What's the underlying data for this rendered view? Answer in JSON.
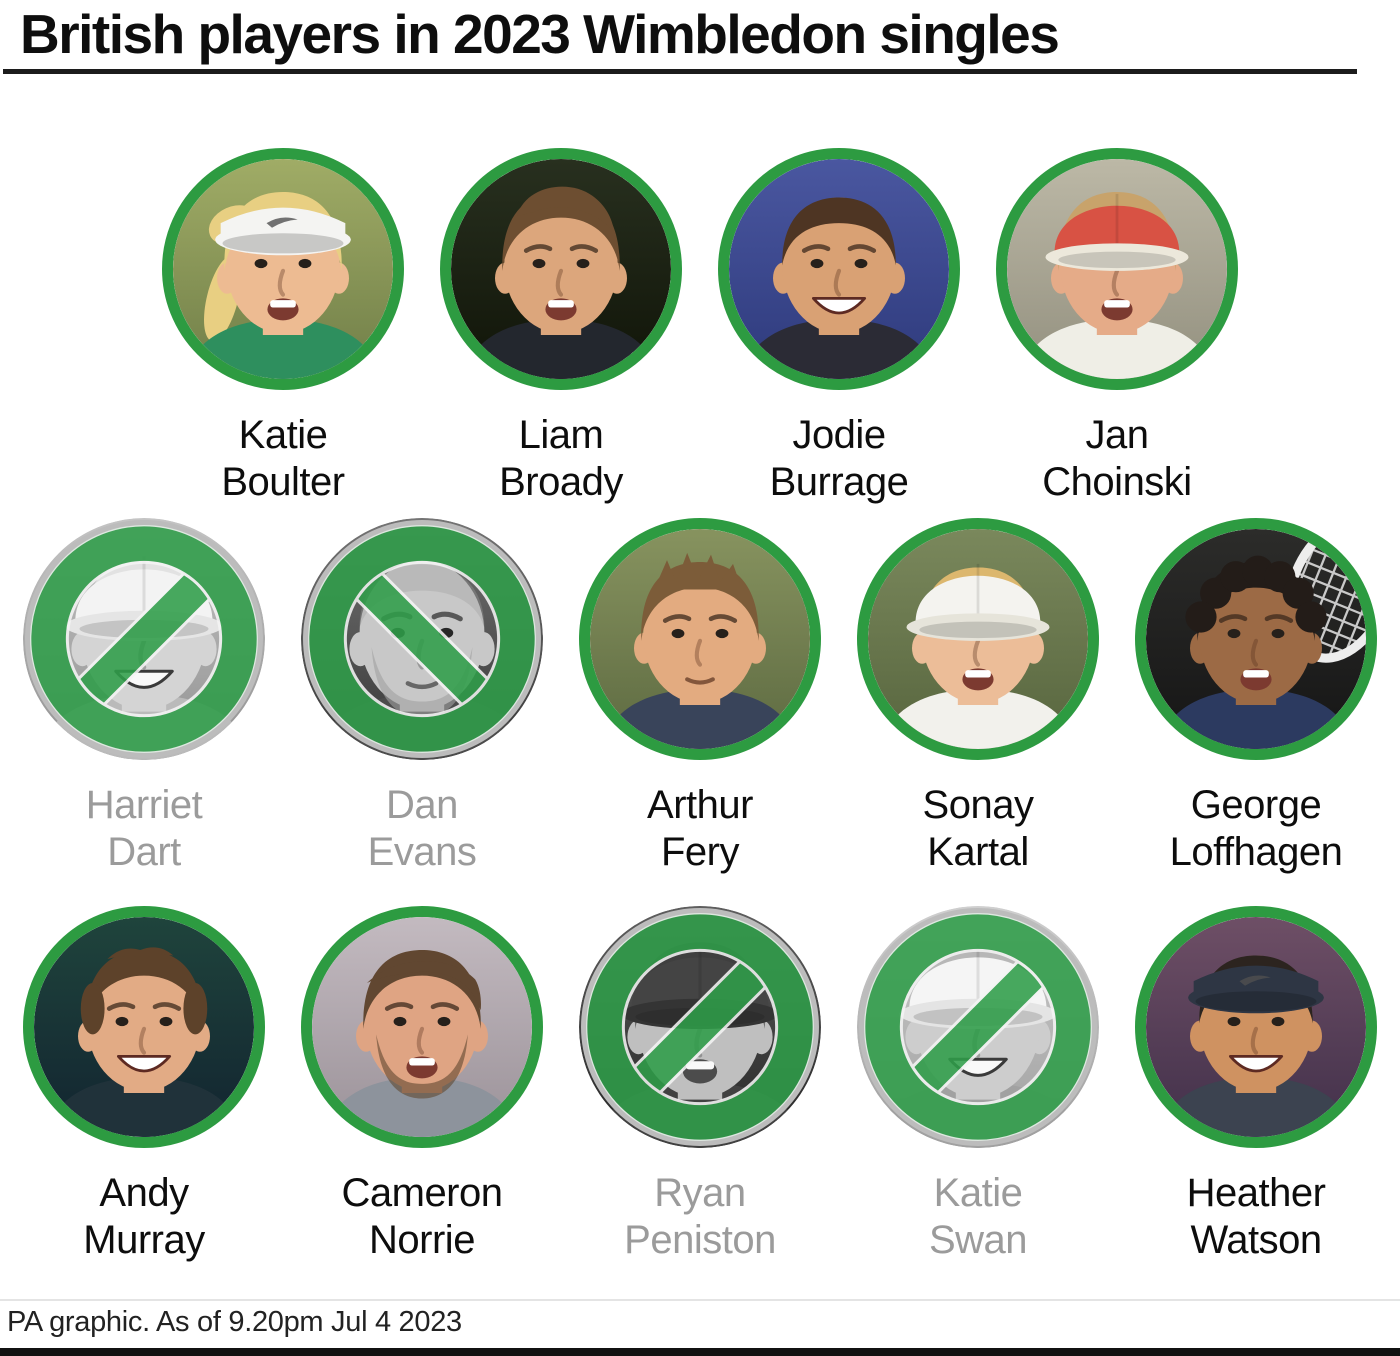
{
  "header": {
    "title": "British players in 2023 Wimbledon singles"
  },
  "footer": {
    "note": "PA graphic. As of 9.20pm Jul 4 2023"
  },
  "colors": {
    "active_ring_green": "#2d9b41",
    "ban_green": "#2f9e49",
    "ban_silver_ring": "#bcbcbc",
    "name_active": "#0d0d0d",
    "name_eliminated": "#9b9b9b",
    "title_rule": "#1c1c1c"
  },
  "rows": [
    {
      "players": [
        {
          "first": "Katie",
          "last": "Boulter",
          "status": "in",
          "photo": {
            "bg_top": "#a0ac66",
            "bg_bottom": "#707e48",
            "skin": "#edbb92",
            "hair": "#e8cf82",
            "hair_style": "ponytail",
            "headwear": "visor",
            "headwear_color": "#f4f4f2",
            "shirt": "#2e8f5e",
            "mouth": "open"
          }
        },
        {
          "first": "Liam",
          "last": "Broady",
          "status": "in",
          "photo": {
            "bg_top": "#28301f",
            "bg_bottom": "#101408",
            "skin": "#dca67c",
            "hair": "#6d4e31",
            "hair_style": "quiff",
            "headwear": "none",
            "shirt": "#23272e",
            "mouth": "open"
          }
        },
        {
          "first": "Jodie",
          "last": "Burrage",
          "status": "in",
          "photo": {
            "bg_top": "#4a57a0",
            "bg_bottom": "#2e3a7c",
            "skin": "#d9a174",
            "hair": "#4e3523",
            "hair_style": "pulledback",
            "headwear": "none",
            "shirt": "#2b2b35",
            "mouth": "grin"
          }
        },
        {
          "first": "Jan",
          "last": "Choinski",
          "status": "in",
          "photo": {
            "bg_top": "#bcb8a6",
            "bg_bottom": "#93907f",
            "skin": "#e5ab88",
            "hair": "#c8a36b",
            "hair_style": "short",
            "headwear": "cap",
            "headwear_color": "#d85244",
            "brim_color": "#ece8db",
            "shirt": "#efeee6",
            "mouth": "open"
          }
        }
      ]
    },
    {
      "players": [
        {
          "first": "Harriet",
          "last": "Dart",
          "status": "out",
          "slash": "/",
          "photo": {
            "bg_top": "#c2c2c2",
            "bg_bottom": "#8e8e8e",
            "skin": "#d2d2d2",
            "hair": "#e0e0e0",
            "hair_style": "pulledback",
            "headwear": "cap",
            "headwear_color": "#f2f2f2",
            "brim_color": "#e4e4e4",
            "shirt": "#b8b8b8",
            "mouth": "grin"
          }
        },
        {
          "first": "Dan",
          "last": "Evans",
          "status": "out",
          "slash": "\\",
          "photo": {
            "bg_top": "#707070",
            "bg_bottom": "#303030",
            "skin": "#c6c6c6",
            "hair": "#9c9c9c",
            "hair_style": "bald",
            "headwear": "none",
            "shirt": "#474747",
            "mouth": "neutral",
            "beard": true
          }
        },
        {
          "first": "Arthur",
          "last": "Fery",
          "status": "in",
          "photo": {
            "bg_top": "#87935f",
            "bg_bottom": "#5d6a41",
            "skin": "#e3ab80",
            "hair": "#7c5c39",
            "hair_style": "spiky",
            "headwear": "none",
            "shirt": "#39445a",
            "mouth": "neutral"
          }
        },
        {
          "first": "Sonay",
          "last": "Kartal",
          "status": "in",
          "photo": {
            "bg_top": "#7a885c",
            "bg_bottom": "#57653e",
            "skin": "#ecbd98",
            "hair": "#dcb76e",
            "hair_style": "pulledback",
            "headwear": "cap",
            "headwear_color": "#f4f3ef",
            "brim_color": "#e6e4da",
            "shirt": "#f2f1ec",
            "mouth": "open"
          }
        },
        {
          "first": "George",
          "last": "Loffhagen",
          "status": "in",
          "photo": {
            "bg_top": "#2c2c2a",
            "bg_bottom": "#151515",
            "skin": "#9c6a45",
            "hair": "#231c18",
            "hair_style": "curly",
            "headwear": "none",
            "shirt": "#2c3a60",
            "mouth": "open",
            "racket": true
          }
        }
      ]
    },
    {
      "players": [
        {
          "first": "Andy",
          "last": "Murray",
          "status": "in",
          "photo": {
            "bg_top": "#1f443c",
            "bg_bottom": "#122430",
            "skin": "#e2ab85",
            "hair": "#5d422a",
            "hair_style": "messy",
            "headwear": "none",
            "shirt": "#20323a",
            "mouth": "grin"
          }
        },
        {
          "first": "Cameron",
          "last": "Norrie",
          "status": "in",
          "photo": {
            "bg_top": "#c3bac0",
            "bg_bottom": "#9b9299",
            "skin": "#dfa483",
            "hair": "#614731",
            "hair_style": "swept",
            "headwear": "none",
            "shirt": "#8d939c",
            "mouth": "open",
            "beard": true
          }
        },
        {
          "first": "Ryan",
          "last": "Peniston",
          "status": "out",
          "slash": "/",
          "photo": {
            "bg_top": "#5a5a5a",
            "bg_bottom": "#1f1f1f",
            "skin": "#bdbdbd",
            "hair": "#3a3a3a",
            "hair_style": "short",
            "headwear": "cap",
            "headwear_color": "#3f3f3f",
            "brim_color": "#2f2f2f",
            "shirt": "#3c3c3c",
            "mouth": "open"
          }
        },
        {
          "first": "Katie",
          "last": "Swan",
          "status": "out",
          "slash": "/",
          "photo": {
            "bg_top": "#cdcdcd",
            "bg_bottom": "#9a9a9a",
            "skin": "#cbcbcb",
            "hair": "#b4b4b4",
            "hair_style": "pulledback",
            "headwear": "cap",
            "headwear_color": "#f4f4f4",
            "brim_color": "#e2e2e2",
            "shirt": "#9e9e9e",
            "mouth": "grin"
          }
        },
        {
          "first": "Heather",
          "last": "Watson",
          "status": "in",
          "photo": {
            "bg_top": "#6e4f66",
            "bg_bottom": "#41304a",
            "skin": "#cf9261",
            "hair": "#2c241f",
            "hair_style": "pulledback",
            "headwear": "visor",
            "headwear_color": "#2e3644",
            "shirt": "#3c4350",
            "mouth": "grin"
          }
        }
      ]
    }
  ]
}
